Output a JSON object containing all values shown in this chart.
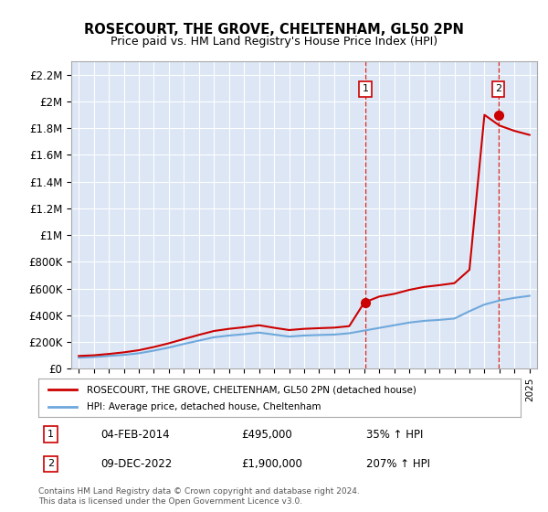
{
  "title": "ROSECOURT, THE GROVE, CHELTENHAM, GL50 2PN",
  "subtitle": "Price paid vs. HM Land Registry's House Price Index (HPI)",
  "background_color": "#ffffff",
  "plot_bg_color": "#dce6f5",
  "grid_color": "#ffffff",
  "hpi_color": "#6fa8dc",
  "price_color": "#cc0000",
  "ylim": [
    0,
    2300000
  ],
  "yticks": [
    0,
    200000,
    400000,
    600000,
    800000,
    1000000,
    1200000,
    1400000,
    1600000,
    1800000,
    2000000,
    2200000
  ],
  "ytick_labels": [
    "£0",
    "£200K",
    "£400K",
    "£600K",
    "£800K",
    "£1M",
    "£1.2M",
    "£1.4M",
    "£1.6M",
    "£1.8M",
    "£2M",
    "£2.2M"
  ],
  "xlim_start": 1994.5,
  "xlim_end": 2025.5,
  "sale1_x": 2014.09,
  "sale1_y": 495000,
  "sale1_label": "1",
  "sale1_date": "04-FEB-2014",
  "sale1_price": "£495,000",
  "sale1_hpi": "35% ↑ HPI",
  "sale2_x": 2022.92,
  "sale2_y": 1900000,
  "sale2_label": "2",
  "sale2_date": "09-DEC-2022",
  "sale2_price": "£1,900,000",
  "sale2_hpi": "207% ↑ HPI",
  "legend_line1": "ROSECOURT, THE GROVE, CHELTENHAM, GL50 2PN (detached house)",
  "legend_line2": "HPI: Average price, detached house, Cheltenham",
  "footnote": "Contains HM Land Registry data © Crown copyright and database right 2024.\nThis data is licensed under the Open Government Licence v3.0.",
  "hpi_years": [
    1995,
    1996,
    1997,
    1998,
    1999,
    2000,
    2001,
    2002,
    2003,
    2004,
    2005,
    2006,
    2007,
    2008,
    2009,
    2010,
    2011,
    2012,
    2013,
    2014,
    2015,
    2016,
    2017,
    2018,
    2019,
    2020,
    2021,
    2022,
    2023,
    2024,
    2025
  ],
  "hpi_values": [
    82000,
    87000,
    95000,
    103000,
    115000,
    135000,
    158000,
    185000,
    210000,
    235000,
    248000,
    258000,
    270000,
    255000,
    240000,
    248000,
    252000,
    255000,
    265000,
    285000,
    305000,
    325000,
    345000,
    358000,
    365000,
    375000,
    430000,
    480000,
    510000,
    530000,
    545000
  ],
  "price_years": [
    1995,
    1996,
    1997,
    1998,
    1999,
    2000,
    2001,
    2002,
    2003,
    2004,
    2005,
    2006,
    2007,
    2008,
    2009,
    2010,
    2011,
    2012,
    2013,
    2014,
    2015,
    2016,
    2017,
    2018,
    2019,
    2020,
    2021,
    2022,
    2023,
    2024,
    2025
  ],
  "price_values": [
    95000,
    100000,
    110000,
    122000,
    138000,
    162000,
    190000,
    222000,
    253000,
    282000,
    298000,
    310000,
    325000,
    306000,
    289000,
    298000,
    303000,
    307000,
    318000,
    495000,
    540000,
    560000,
    590000,
    612000,
    625000,
    640000,
    740000,
    1900000,
    1820000,
    1780000,
    1750000
  ]
}
